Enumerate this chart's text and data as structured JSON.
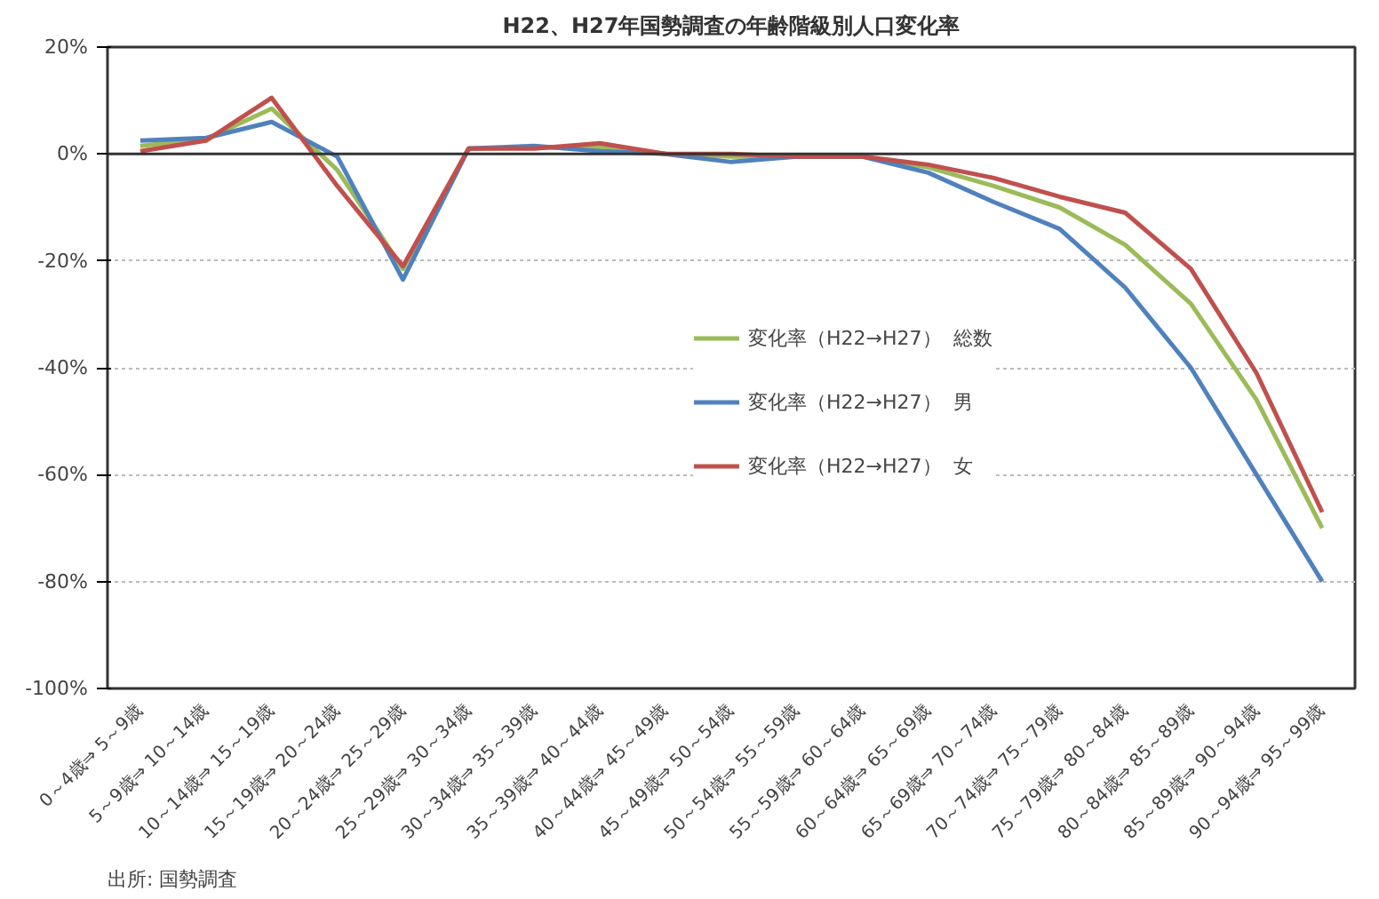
{
  "chart_data": {
    "type": "line",
    "title": "H22、H27年国勢調査の年齢階級別人口変化率",
    "categories": [
      "0～4歳⇒ 5～9歳",
      "5～9歳⇒ 10～14歳",
      "10～14歳⇒ 15～19歳",
      "15～19歳⇒ 20～24歳",
      "20～24歳⇒ 25～29歳",
      "25～29歳⇒ 30～34歳",
      "30～34歳⇒ 35～39歳",
      "35～39歳⇒ 40～44歳",
      "40～44歳⇒ 45～49歳",
      "45～49歳⇒ 50～54歳",
      "50～54歳⇒ 55～59歳",
      "55～59歳⇒ 60～64歳",
      "60～64歳⇒ 65～69歳",
      "65～69歳⇒ 70～74歳",
      "70～74歳⇒ 75～79歳",
      "75～79歳⇒ 80～84歳",
      "80～84歳⇒ 85～89歳",
      "85～89歳⇒ 90～94歳",
      "90～94歳⇒ 95～99歳"
    ],
    "series": [
      {
        "name": "変化率（H22→H27）  総数",
        "color": "#9bbb59",
        "values": [
          1.5,
          2.8,
          8.5,
          -3,
          -21.5,
          1,
          1.2,
          1.2,
          0,
          -0.5,
          -0.5,
          -0.5,
          -2.5,
          -6,
          -10,
          -17,
          -28,
          -46,
          -70
        ]
      },
      {
        "name": "変化率（H22→H27）  男",
        "color": "#4f81bd",
        "values": [
          2.5,
          3,
          6,
          -0.5,
          -23.5,
          1,
          1.5,
          0.5,
          0,
          -1.5,
          -0.5,
          -0.5,
          -3.5,
          -9,
          -14,
          -25,
          -40,
          -60,
          -80
        ]
      },
      {
        "name": "変化率（H22→H27）  女",
        "color": "#c0504d",
        "values": [
          0.5,
          2.5,
          10.5,
          -6,
          -21,
          1,
          1,
          2,
          0,
          0,
          -0.5,
          -0.5,
          -2,
          -4.5,
          -8,
          -11,
          -21.5,
          -41,
          -67
        ]
      }
    ],
    "ylim": [
      -100,
      20
    ],
    "yticks": [
      {
        "value": 20,
        "label": "20%"
      },
      {
        "value": 0,
        "label": "0%"
      },
      {
        "value": -20,
        "label": "-20%"
      },
      {
        "value": -40,
        "label": "-40%"
      },
      {
        "value": -60,
        "label": "-60%"
      },
      {
        "value": -80,
        "label": "-80%"
      },
      {
        "value": -100,
        "label": "-100%"
      }
    ],
    "grid": "y",
    "legend": "center",
    "marker": "none",
    "line_style": "solid",
    "annotations": [
      "出所: 国勢調査"
    ]
  }
}
